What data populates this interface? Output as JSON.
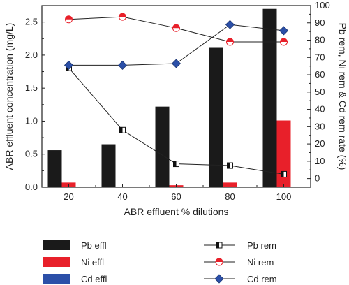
{
  "chart_data": {
    "type": "bar",
    "categories": [
      "20",
      "40",
      "60",
      "80",
      "100"
    ],
    "xlabel": "ABR effluent % dilutions",
    "ylabel": "ABR effluent concentration (mg/L)",
    "y2label": "Pb rem, Ni rem & Cd rem rate (%)",
    "ylim": [
      0,
      2.75
    ],
    "y2lim": [
      -5,
      100
    ],
    "yticks": [
      "0.0",
      "0.5",
      "1.0",
      "1.5",
      "2.0",
      "2.5"
    ],
    "y2ticks": [
      "0",
      "10",
      "20",
      "30",
      "40",
      "50",
      "60",
      "70",
      "80",
      "90",
      "100"
    ],
    "bar_series": [
      {
        "name": "Pb effl",
        "color": "#1a1a1a",
        "values": [
          0.56,
          0.65,
          1.22,
          2.11,
          2.7
        ]
      },
      {
        "name": "Ni effl",
        "color": "#e8202a",
        "values": [
          0.07,
          0.01,
          0.03,
          0.07,
          1.01
        ]
      },
      {
        "name": "Cd effl",
        "color": "#2b4fa8",
        "values": [
          0.0,
          0.0,
          0.0,
          0.0,
          0.0
        ]
      }
    ],
    "line_series": [
      {
        "name": "Pb rem",
        "marker": "half-square",
        "color": "#111111",
        "values": [
          64,
          28,
          8.5,
          7.5,
          2.5
        ]
      },
      {
        "name": "Ni rem",
        "marker": "half-circle",
        "color": "#e8202a",
        "values": [
          92,
          93.5,
          87,
          79,
          79
        ]
      },
      {
        "name": "Cd rem",
        "marker": "diamond",
        "color": "#2b4fa8",
        "values": [
          65.5,
          65.5,
          66.5,
          89,
          85.5
        ]
      }
    ],
    "legend_position": "bottom"
  }
}
